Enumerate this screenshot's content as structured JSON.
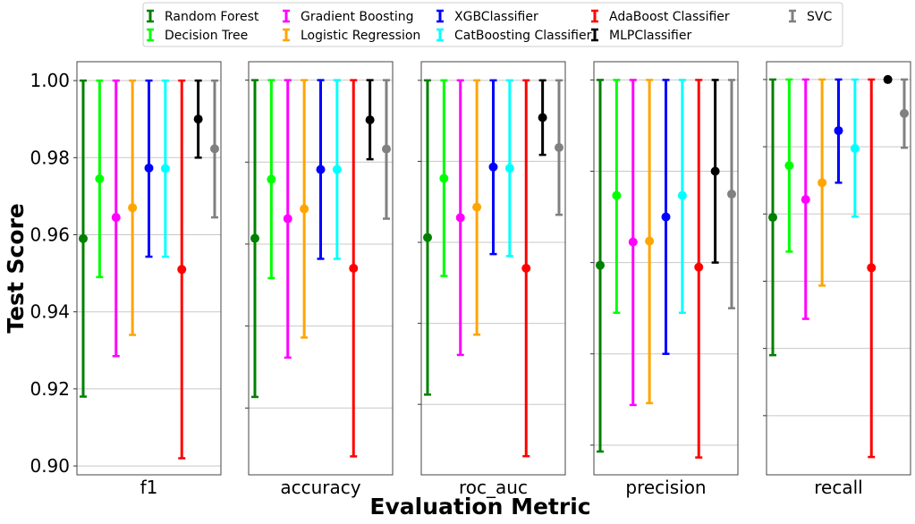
{
  "chart_data": {
    "type": "errorbar",
    "xlabel": "Evaluation Metric",
    "ylabel": "Test Score",
    "grid": "y",
    "legend_position": "top-center",
    "yticks": [
      0.9,
      0.92,
      0.94,
      0.96,
      0.98,
      1.0
    ],
    "ytick_labels": [
      "0.90",
      "0.92",
      "0.94",
      "0.96",
      "0.98",
      "1.00"
    ],
    "models": [
      {
        "name": "Random Forest",
        "color": "#008000"
      },
      {
        "name": "Decision Tree",
        "color": "#00ff00"
      },
      {
        "name": "Gradient Boosting",
        "color": "#ff00ff"
      },
      {
        "name": "Logistic Regression",
        "color": "#ffa500"
      },
      {
        "name": "XGBClassifier",
        "color": "#0000ff"
      },
      {
        "name": "CatBoosting Classifier",
        "color": "#00ffff"
      },
      {
        "name": "AdaBoost Classifier",
        "color": "#ff0000"
      },
      {
        "name": "MLPClassifier",
        "color": "#000000"
      },
      {
        "name": "SVC",
        "color": "#808080"
      }
    ],
    "panels": [
      {
        "metric": "f1",
        "ylim": [
          0.8977,
          1.0049
        ],
        "mean": [
          0.959,
          0.9745,
          0.9645,
          0.967,
          0.9773,
          0.9772,
          0.951,
          0.99,
          0.9823
        ],
        "lower": [
          0.918,
          0.949,
          0.9285,
          0.934,
          0.9543,
          0.9543,
          0.902,
          0.98,
          0.9645
        ],
        "upper": [
          1.0,
          1.0,
          1.0,
          1.0,
          1.0,
          1.0,
          1.0,
          1.0,
          1.0
        ]
      },
      {
        "metric": "accuracy",
        "ylim": [
          0.9037,
          1.0045
        ],
        "mean": [
          0.9614,
          0.9758,
          0.9662,
          0.9686,
          0.9782,
          0.9782,
          0.9541,
          0.9903,
          0.9832
        ],
        "lower": [
          0.9227,
          0.9517,
          0.9323,
          0.9372,
          0.9564,
          0.9564,
          0.9082,
          0.9807,
          0.9662
        ],
        "upper": [
          1.0,
          1.0,
          1.0,
          1.0,
          1.0,
          1.0,
          1.0,
          1.0,
          1.0
        ]
      },
      {
        "metric": "roc_auc",
        "ylim": [
          0.9026,
          1.0046
        ],
        "mean": [
          0.9612,
          0.9758,
          0.9661,
          0.9687,
          0.9786,
          0.9783,
          0.9536,
          0.9908,
          0.9834
        ],
        "lower": [
          0.9224,
          0.9517,
          0.9322,
          0.9372,
          0.9571,
          0.9566,
          0.9072,
          0.9816,
          0.9668
        ],
        "upper": [
          1.0,
          1.0,
          1.0,
          1.0,
          1.0,
          1.0,
          1.0,
          1.0,
          1.0
        ]
      },
      {
        "metric": "precision",
        "ylim": [
          0.9135,
          1.004
        ],
        "mean": [
          0.9594,
          0.9747,
          0.9645,
          0.9647,
          0.97,
          0.9747,
          0.959,
          0.98,
          0.975
        ],
        "lower": [
          0.9186,
          0.949,
          0.9288,
          0.9292,
          0.94,
          0.949,
          0.9173,
          0.96,
          0.95
        ],
        "upper": [
          1.0,
          1.0,
          1.0,
          1.0,
          1.0,
          1.0,
          1.0,
          1.0,
          1.0
        ]
      },
      {
        "metric": "recall",
        "ylim": [
          0.8824,
          1.0053
        ],
        "mean": [
          0.959,
          0.9744,
          0.9643,
          0.9693,
          0.9848,
          0.9795,
          0.944,
          1.0,
          0.9899
        ],
        "lower": [
          0.918,
          0.9488,
          0.9288,
          0.9387,
          0.9693,
          0.9592,
          0.8877,
          1.0,
          0.9797
        ],
        "upper": [
          1.0,
          1.0,
          1.0,
          1.0,
          1.0,
          1.0,
          1.0,
          1.0,
          1.0
        ]
      }
    ]
  }
}
